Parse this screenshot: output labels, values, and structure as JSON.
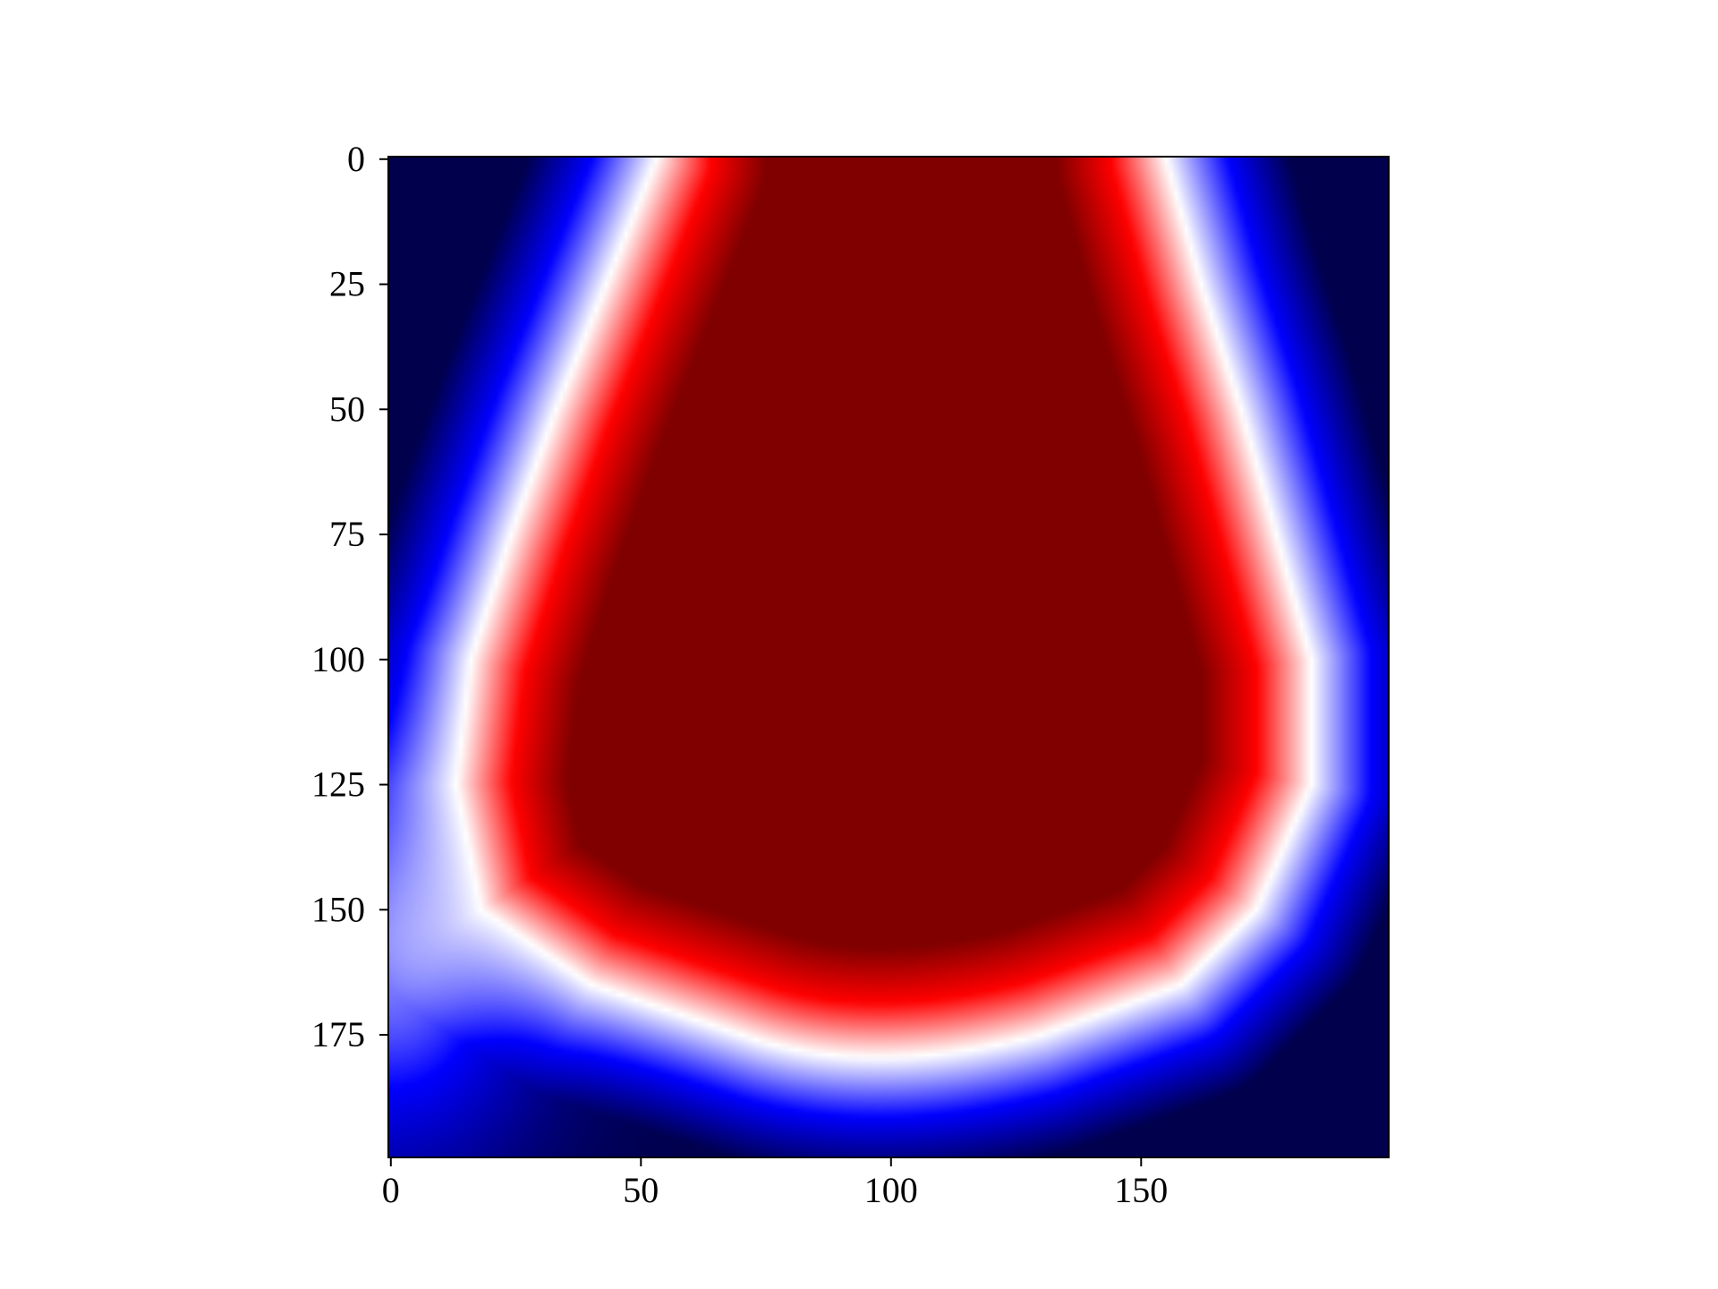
{
  "chart_data": {
    "type": "heatmap",
    "title": "",
    "xlabel": "",
    "ylabel": "",
    "grid": false,
    "legend": "none",
    "colormap": "seismic",
    "colormap_stops": [
      "#00004c",
      "#0000ff",
      "#ffffff",
      "#ff0000",
      "#800000"
    ],
    "image_size": [
      200,
      200
    ],
    "xlim": [
      -0.5,
      199.5
    ],
    "ylim": [
      199.5,
      -0.5
    ],
    "y_axis_inverted": true,
    "x_ticks": [
      0,
      50,
      100,
      150
    ],
    "x_tick_labels": [
      "0",
      "50",
      "100",
      "150"
    ],
    "y_ticks": [
      0,
      25,
      50,
      75,
      100,
      125,
      150,
      175
    ],
    "y_tick_labels": [
      "0",
      "25",
      "50",
      "75",
      "100",
      "125",
      "150",
      "175"
    ],
    "level_set_profile": {
      "description_rows": [
        0,
        25,
        50,
        75,
        100,
        125,
        150,
        165,
        175,
        180
      ],
      "zero_contour_left_x": [
        53,
        43,
        33,
        24,
        16,
        13,
        18,
        40,
        70,
        null
      ],
      "zero_contour_right_x": [
        155,
        162,
        170,
        177,
        184,
        184,
        173,
        158,
        130,
        null
      ],
      "zero_contour_bottom_row": 180,
      "zero_contour_bottom_x": 95
    }
  }
}
